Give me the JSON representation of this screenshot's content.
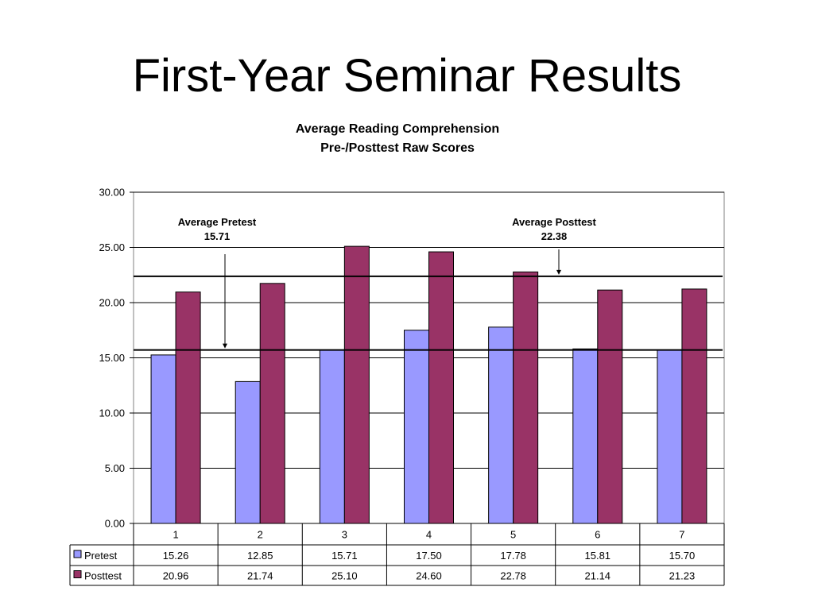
{
  "slide": {
    "title": "First-Year Seminar Results"
  },
  "chart_data": {
    "type": "bar",
    "title": "Average Reading Comprehension",
    "subtitle": "Pre-/Posttest Raw Scores",
    "categories": [
      "1",
      "2",
      "3",
      "4",
      "5",
      "6",
      "7"
    ],
    "series": [
      {
        "name": "Pretest",
        "values": [
          15.26,
          12.85,
          15.71,
          17.5,
          17.78,
          15.81,
          15.7
        ],
        "color": "#9999ff"
      },
      {
        "name": "Posttest",
        "values": [
          20.96,
          21.74,
          25.1,
          24.6,
          22.78,
          21.14,
          21.23
        ],
        "color": "#993366"
      }
    ],
    "ylim": [
      0,
      30
    ],
    "yticks": [
      "0.00",
      "5.00",
      "10.00",
      "15.00",
      "20.00",
      "25.00",
      "30.00"
    ],
    "grid": true,
    "legend": "data-table-below",
    "reference_lines": [
      {
        "label": "Average Pretest",
        "value": 15.71,
        "value_text": "15.71"
      },
      {
        "label": "Average Posttest",
        "value": 22.38,
        "value_text": "22.38"
      }
    ],
    "data_table": {
      "rows": [
        {
          "series": "Pretest",
          "cells": [
            "15.26",
            "12.85",
            "15.71",
            "17.50",
            "17.78",
            "15.81",
            "15.70"
          ]
        },
        {
          "series": "Posttest",
          "cells": [
            "20.96",
            "21.74",
            "25.10",
            "24.60",
            "22.78",
            "21.14",
            "21.23"
          ]
        }
      ]
    }
  }
}
